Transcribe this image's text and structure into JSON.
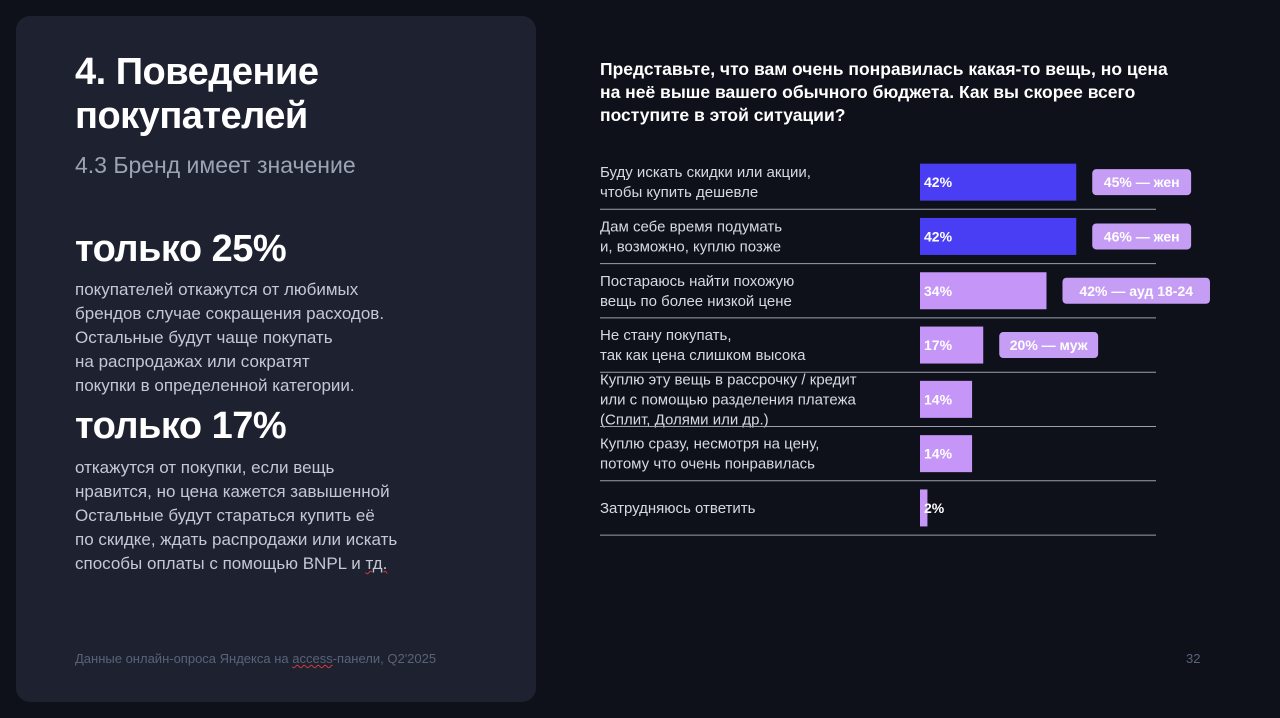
{
  "left": {
    "title": "4. Поведение\nпокупателей",
    "subtitle": "4.3 Бренд имеет значение",
    "stat1_headline": "только 25%",
    "stat1_text": "покупателей откажутся от любимых\nбрендов случае сокращения расходов.\nОстальные будут чаще покупать\nна распродажах или сократят\nпокупки в определенной категории.",
    "stat2_headline": "только 17%",
    "stat2_text_main": "откажутся от покупки, если вещь\nнравится, но цена кажется завышенной\nОстальные будут стараться купить её\nпо скидке, ждать распродажи или искать\nспособы оплаты с помощью BNPL и ",
    "stat2_text_tail": "тд.",
    "footnote_pre": "Данные онлайн-опроса Яндекса на ",
    "footnote_word": "access",
    "footnote_post": "-панели, Q2'2025",
    "page_number": "32"
  },
  "question": "Представьте, что вам очень понравилась какая-то вещь, но цена\nна неё выше вашего обычного бюджета. Как вы скорее всего\nпоступите в этой ситуации?",
  "colors": {
    "primary_bar": "#4a3ef5",
    "secondary_bar": "#c595f8",
    "badge_fill": "#c69df5",
    "divider": "#9aa0ae"
  },
  "chart_data": {
    "type": "bar",
    "orientation": "horizontal",
    "categories": [
      "Буду искать скидки или акции,\nчтобы купить дешевле",
      "Дам себе время подумать\nи, возможно, куплю позже",
      "Постараюсь найти похожую\nвещь по более низкой цене",
      "Не стану покупать,\nтак как цена слишком высока",
      "Куплю эту вещь в рассрочку / кредит\nили с помощью разделения платежа\n(Сплит, Долями или др.)",
      "Куплю сразу, несмотря на цену,\nпотому что очень понравилась",
      "Затрудняюсь ответить"
    ],
    "values": [
      42,
      42,
      34,
      17,
      14,
      14,
      2
    ],
    "labels": [
      "42%",
      "42%",
      "34%",
      "17%",
      "14%",
      "14%",
      "2%"
    ],
    "bar_colors": [
      "#4a3ef5",
      "#4a3ef5",
      "#c595f8",
      "#c595f8",
      "#c595f8",
      "#c595f8",
      "#c595f8"
    ],
    "badges": [
      "45% — жен",
      "46% — жен",
      "42% — ауд 18-24",
      "20% — муж",
      "",
      "",
      ""
    ],
    "unit": "%",
    "xlim": [
      0,
      100
    ]
  }
}
